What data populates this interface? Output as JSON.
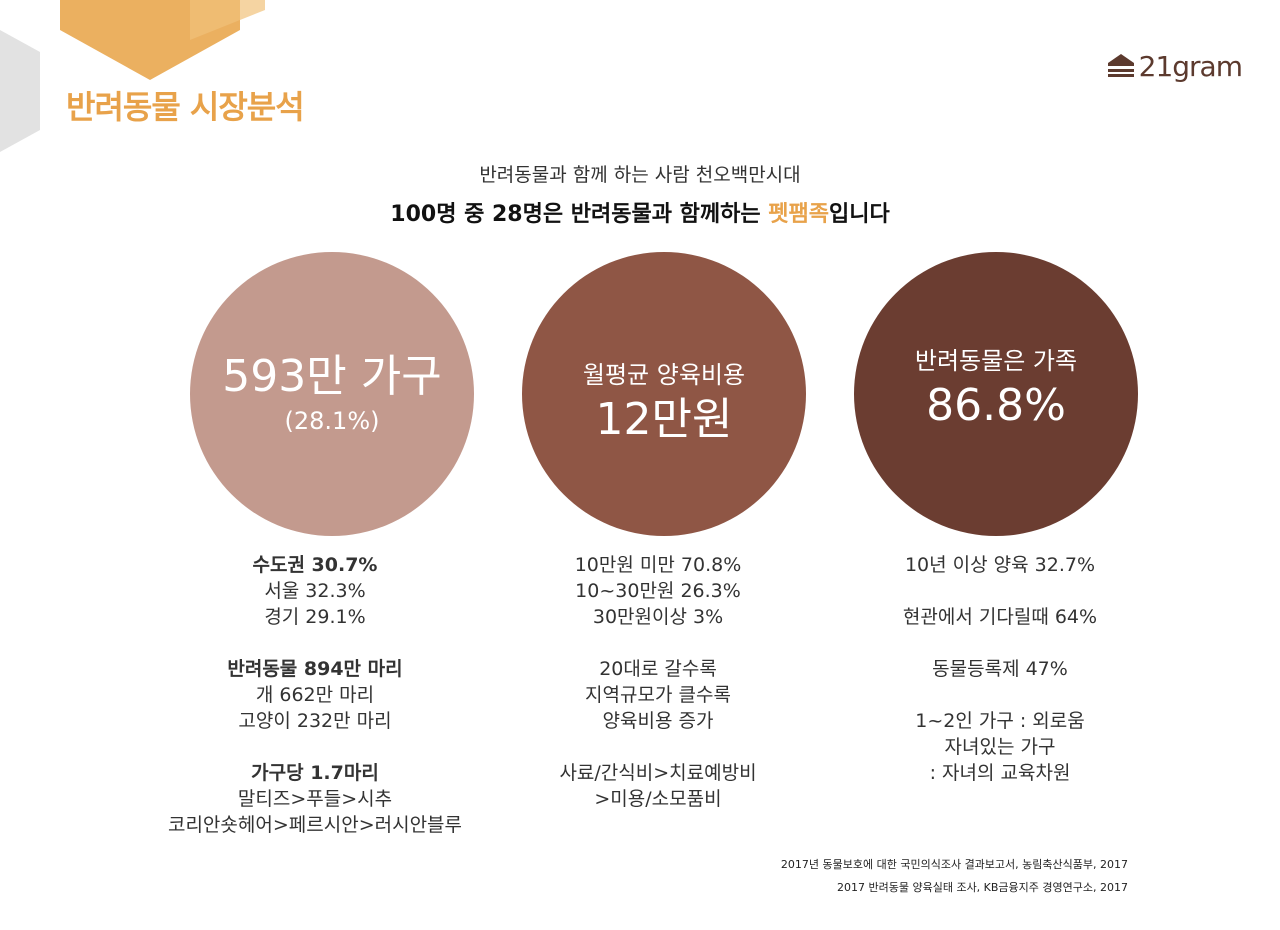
{
  "page": {
    "title": "반려동물 시장분석"
  },
  "logo": {
    "text": "21gram"
  },
  "headline": {
    "line1": "반려동물과 함께 하는 사람 천오백만시대",
    "line2_prefix": "100명 중 28명은 반려동물과 함께하는 ",
    "line2_highlight": "펫팸족",
    "line2_suffix": "입니다"
  },
  "circles": [
    {
      "big": "593만 가구",
      "small": "(28.1%)"
    },
    {
      "label": "월평균 양육비용",
      "big": "12만원"
    },
    {
      "label": "반려동물은 가족",
      "big": "86.8%"
    }
  ],
  "columns": {
    "col1": {
      "g1_title": "수도권 30.7%",
      "g1_l1": "서울 32.3%",
      "g1_l2": "경기 29.1%",
      "g2_title": "반려동물 894만 마리",
      "g2_l1": "개 662만 마리",
      "g2_l2": "고양이 232만 마리",
      "g3_title": "가구당 1.7마리",
      "g3_l1": "말티즈>푸들>시추",
      "g3_l2": "코리안숏헤어>페르시안>러시안블루"
    },
    "col2": {
      "g1_l1": "10만원 미만 70.8%",
      "g1_l2": "10~30만원 26.3%",
      "g1_l3": "30만원이상 3%",
      "g2_l1": "20대로 갈수록",
      "g2_l2": "지역규모가 클수록",
      "g2_l3": "양육비용 증가",
      "g3_l1": "사료/간식비>치료예방비",
      "g3_l2": ">미용/소모품비"
    },
    "col3": {
      "l1": "10년 이상 양육 32.7%",
      "l2": "현관에서 기다릴때 64%",
      "l3": "동물등록제 47%",
      "l4": "1~2인 가구 : 외로움",
      "l5": "자녀있는 가구",
      "l6": ": 자녀의 교육차원"
    }
  },
  "sources": [
    "2017년 동물보호에 대한 국민의식조사 결과보고서, 농림축산식품부, 2017",
    "2017 반려동물 양육실태 조사, KB금융지주 경영연구소, 2017"
  ],
  "colors": {
    "accent": "#e8a24a",
    "circle1": "#c39a8e",
    "circle2": "#8f5645",
    "circle3": "#6b3d31",
    "logo": "#5c3a2e"
  }
}
